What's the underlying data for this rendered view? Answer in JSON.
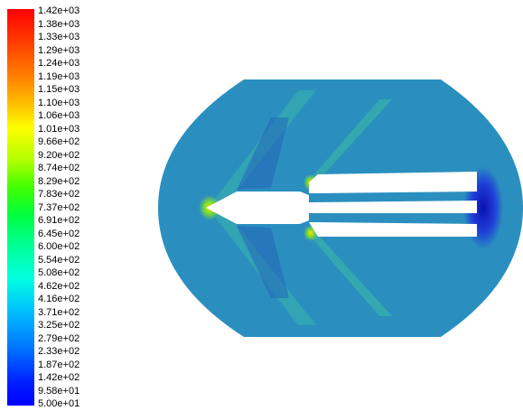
{
  "colorbar": {
    "labels": [
      "1.42e+03",
      "1.38e+03",
      "1.33e+03",
      "1.29e+03",
      "1.24e+03",
      "1.19e+03",
      "1.15e+03",
      "1.10e+03",
      "1.06e+03",
      "1.01e+03",
      "9.66e+02",
      "9.20e+02",
      "8.74e+02",
      "8.29e+02",
      "7.83e+02",
      "7.37e+02",
      "6.91e+02",
      "6.45e+02",
      "6.00e+02",
      "5.54e+02",
      "5.08e+02",
      "4.62e+02",
      "4.16e+02",
      "3.71e+02",
      "3.25e+02",
      "2.79e+02",
      "2.33e+02",
      "1.87e+02",
      "1.42e+02",
      "9.58e+01",
      "5.00e+01"
    ],
    "max": 1420,
    "min": 50
  },
  "field": {
    "background_color": "#2a8fbf",
    "body_color": "#ffffff",
    "hot_color": "#9bdc3c",
    "cold_color": "#1535c8"
  }
}
